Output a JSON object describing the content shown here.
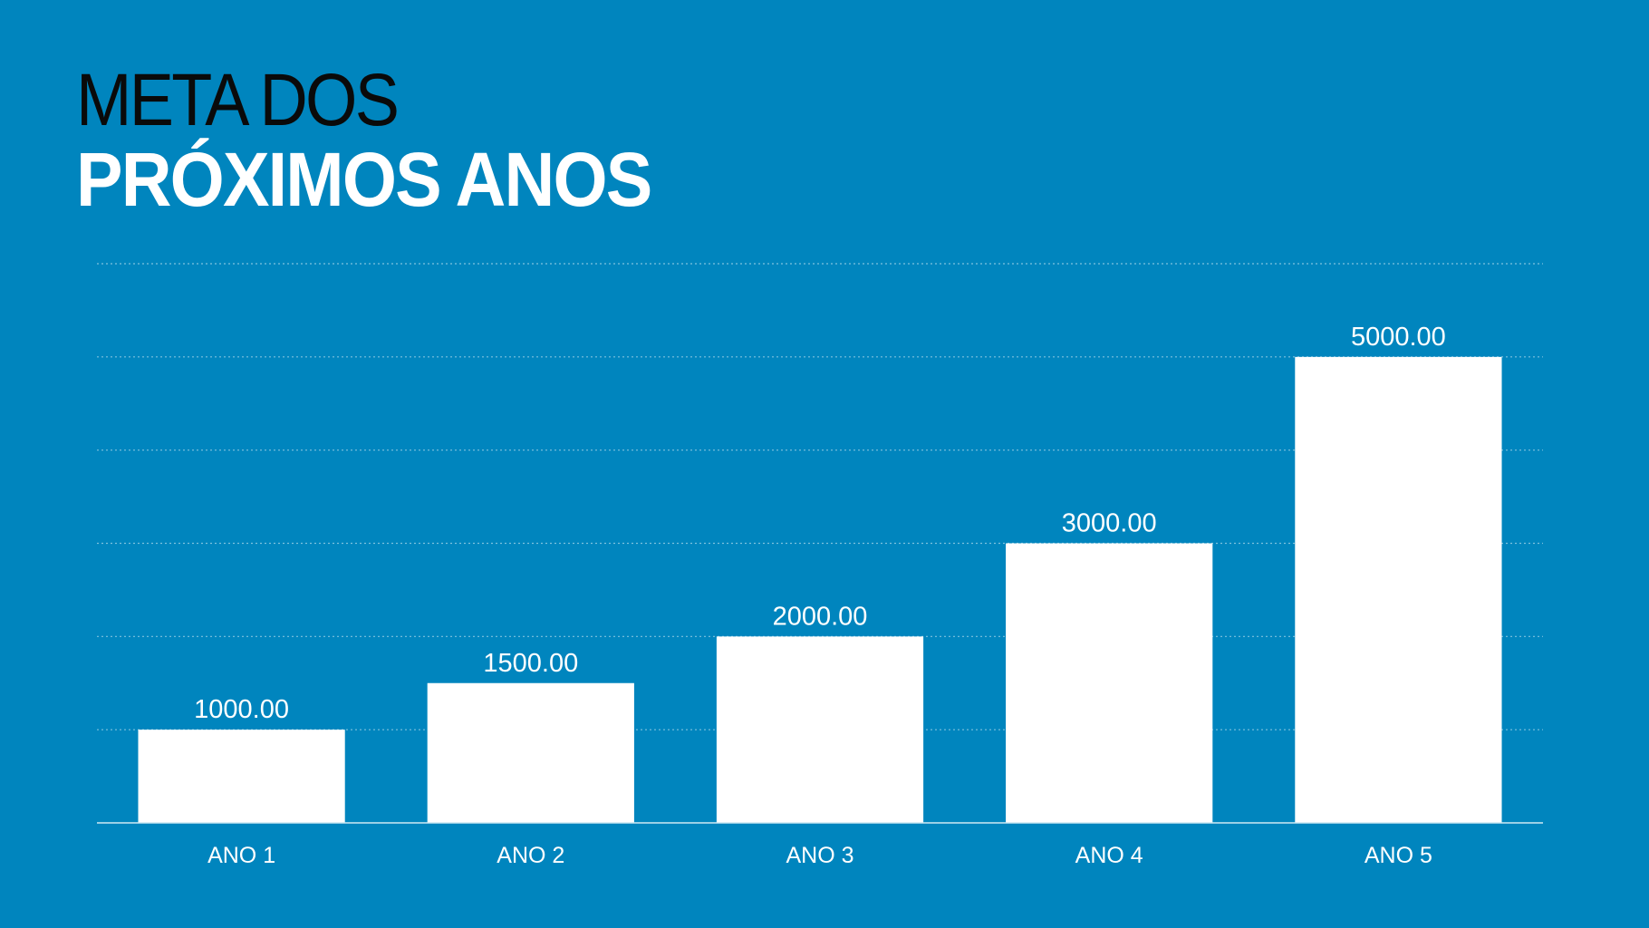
{
  "slide": {
    "title_line_1": "META DOS",
    "title_line_2": "PRÓXIMOS ANOS"
  },
  "colors": {
    "background": "#0085BE",
    "bar": "#FFFFFF",
    "gridline": "#7FC2DE",
    "title_dark": "#0A0A0A",
    "title_light": "#FFFFFF"
  },
  "chart_data": {
    "type": "bar",
    "title": "META DOS PRÓXIMOS ANOS",
    "categories": [
      "ANO 1",
      "ANO 2",
      "ANO 3",
      "ANO 4",
      "ANO 5"
    ],
    "values": [
      1000,
      1500,
      2000,
      3000,
      5000
    ],
    "data_labels": [
      "1000.00",
      "1500.00",
      "2000.00",
      "3000.00",
      "5000.00"
    ],
    "xlabel": "",
    "ylabel": "",
    "ylim": [
      0,
      6000
    ],
    "y_grid_step": 1000,
    "grid": true,
    "legend": "none"
  }
}
